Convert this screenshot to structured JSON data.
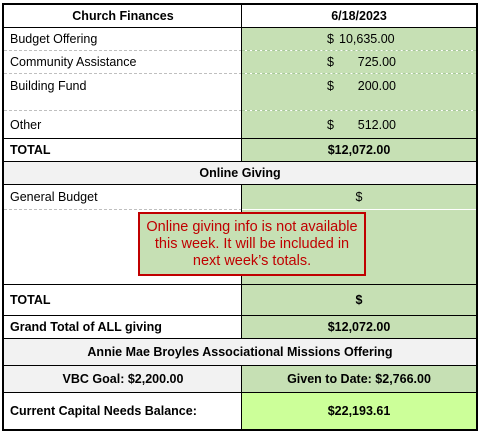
{
  "header": {
    "title": "Church Finances",
    "date": "6/18/2023"
  },
  "finances": [
    {
      "label": "Budget Offering",
      "currency": "$",
      "amount": "10,635.00"
    },
    {
      "label": "Community Assistance",
      "currency": "$",
      "amount": "725.00"
    },
    {
      "label": "Building Fund",
      "currency": "$",
      "amount": "200.00"
    },
    {
      "label": "Other",
      "currency": "$",
      "amount": "512.00"
    }
  ],
  "total": {
    "label": "TOTAL",
    "value": "$12,072.00"
  },
  "online": {
    "title": "Online Giving",
    "general_label": "General Budget",
    "general_value": "$",
    "notice": "Online giving info is not available this week. It will be included in next week’s totals.",
    "total_label": "TOTAL",
    "total_value": "$"
  },
  "grand_total": {
    "label": "Grand Total of ALL giving",
    "value": "$12,072.00"
  },
  "missions": {
    "title": "Annie Mae Broyles Associational Missions Offering",
    "goal": "VBC Goal: $2,200.00",
    "given": "Given to Date: $2,766.00"
  },
  "capital": {
    "label": "Current Capital Needs Balance:",
    "value": "$22,193.61"
  },
  "colors": {
    "value_fill": "#c6e0b4",
    "capital_fill": "#ccff99",
    "notice_red": "#c00000"
  }
}
